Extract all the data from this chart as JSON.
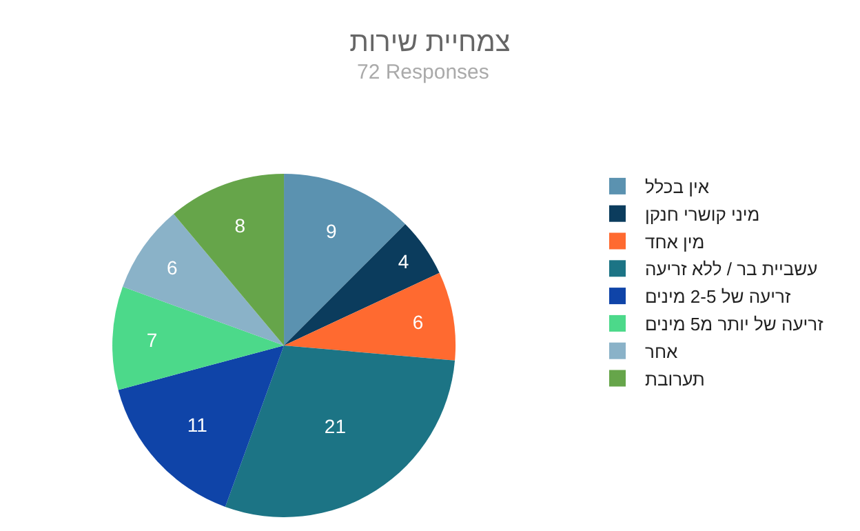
{
  "chart_data": {
    "type": "pie",
    "title": "צמחיית שירות",
    "subtitle": "72 Responses",
    "categories": [
      "אין בכלל",
      "מיני קושרי חנקן",
      "מין אחד",
      "עשביית בר / ללא זריעה",
      "זריעה של 2-5 מינים",
      "זריעה של יותר מ5 מינים",
      "אחר",
      "תערובת"
    ],
    "values": [
      9,
      4,
      6,
      21,
      11,
      7,
      6,
      8
    ],
    "colors": [
      "#5b92b0",
      "#0b3c5d",
      "#ff6a30",
      "#1c7485",
      "#0f44a8",
      "#4cd98a",
      "#8ab2c8",
      "#66a54a"
    ],
    "data_labels": true,
    "legend": "right"
  }
}
